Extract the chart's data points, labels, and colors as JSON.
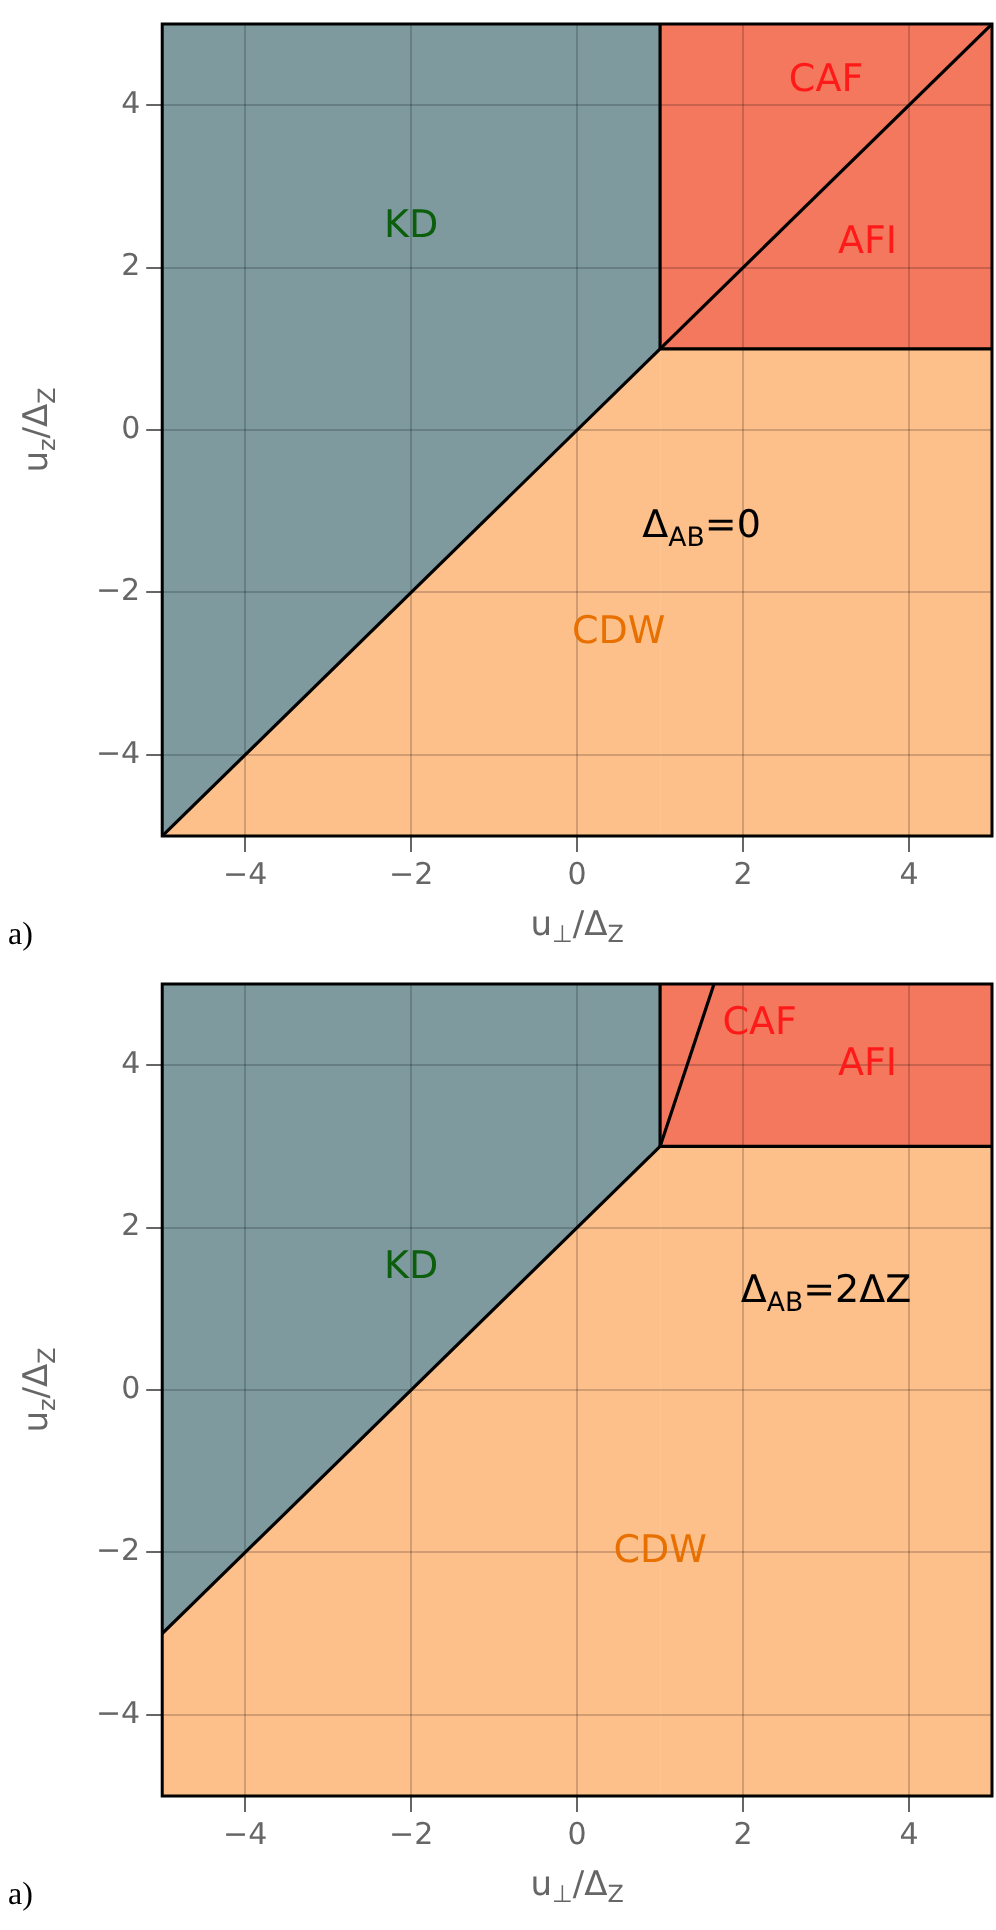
{
  "chart_data": [
    {
      "type": "line",
      "xlabel": "u$_{⊥}$/Δ$_{Z}$",
      "ylabel": "u$_{z}$/Δ$_{Z}$",
      "xlim": [
        -5,
        5
      ],
      "ylim": [
        -5,
        5
      ],
      "xticks": [
        -4,
        -2,
        0,
        2,
        4
      ],
      "yticks": [
        -4,
        -2,
        0,
        2,
        4
      ],
      "grid": true,
      "legend": false,
      "series": [
        {
          "type": "line",
          "color": "#000000",
          "x": [
            -5,
            1,
            5
          ],
          "values": [
            -5,
            1,
            1
          ]
        },
        {
          "type": "line",
          "color": "#000000",
          "x": [
            1,
            1
          ],
          "values": [
            1,
            5
          ]
        },
        {
          "type": "line",
          "color": "#000000",
          "x": [
            1,
            5
          ],
          "values": [
            1,
            5
          ]
        }
      ],
      "annotations": [
        "KD",
        "CAF",
        "AFI",
        "Δ$_{AB}$=0",
        "CDW",
        "a)"
      ]
    },
    {
      "type": "line",
      "xlabel": "u$_{⊥}$/Δ$_{Z}$",
      "ylabel": "u$_{z}$/Δ$_{Z}$",
      "xlim": [
        -5,
        5
      ],
      "ylim": [
        -5,
        5
      ],
      "xticks": [
        -4,
        -2,
        0,
        2,
        4
      ],
      "yticks": [
        -4,
        -2,
        0,
        2,
        4
      ],
      "grid": true,
      "legend": false,
      "series": [
        {
          "type": "line",
          "color": "#000000",
          "x": [
            -5,
            1,
            5
          ],
          "values": [
            -3,
            3,
            3
          ]
        },
        {
          "type": "line",
          "color": "#000000",
          "x": [
            1,
            1
          ],
          "values": [
            3,
            5
          ]
        },
        {
          "type": "line",
          "color": "#000000",
          "x": [
            1,
            1.65
          ],
          "values": [
            3,
            5
          ]
        }
      ],
      "annotations": [
        "KD",
        "CAF",
        "AFI",
        "Δ$_{AB}$=2ΔZ",
        "CDW",
        "a)"
      ]
    }
  ]
}
